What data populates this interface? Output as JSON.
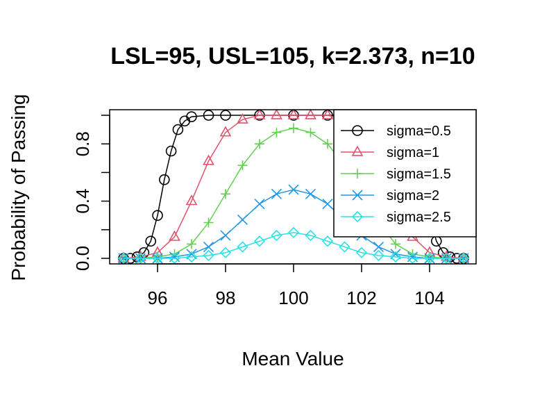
{
  "chart_data": {
    "type": "line",
    "title": "LSL=95, USL=105, k=2.373, n=10",
    "xlabel": "Mean Value",
    "ylabel": "Probability of Passing",
    "xlim": [
      95,
      105
    ],
    "ylim": [
      0,
      1
    ],
    "x_ticks": [
      "96",
      "98",
      "100",
      "102",
      "104"
    ],
    "y_ticks": [
      "0.0",
      "0.4",
      "0.8"
    ],
    "grid": false,
    "legend_position": "top-right",
    "series": [
      {
        "name": "sigma=0.5",
        "color": "#000000",
        "marker": "circle",
        "x": [
          95.0,
          95.2,
          95.4,
          95.6,
          95.8,
          96.0,
          96.2,
          96.4,
          96.6,
          96.8,
          97.0,
          97.5,
          98.0,
          99.0,
          100.0,
          101.0,
          102.0,
          102.5,
          103.0,
          103.2,
          103.4,
          103.6,
          103.8,
          104.0,
          104.2,
          104.4,
          104.6,
          104.8,
          105.0
        ],
        "y": [
          0.0,
          0.0,
          0.01,
          0.04,
          0.12,
          0.3,
          0.55,
          0.75,
          0.9,
          0.96,
          0.99,
          1.0,
          1.0,
          1.0,
          1.0,
          1.0,
          1.0,
          1.0,
          0.99,
          0.96,
          0.9,
          0.75,
          0.55,
          0.3,
          0.12,
          0.04,
          0.01,
          0.0,
          0.0
        ]
      },
      {
        "name": "sigma=1",
        "color": "#DF536B",
        "marker": "triangle",
        "x": [
          95.0,
          95.5,
          96.0,
          96.5,
          97.0,
          97.5,
          98.0,
          98.5,
          99.0,
          99.5,
          100.0,
          100.5,
          101.0,
          101.5,
          102.0,
          102.5,
          103.0,
          103.5,
          104.0,
          104.5,
          105.0
        ],
        "y": [
          0.0,
          0.01,
          0.04,
          0.15,
          0.4,
          0.68,
          0.88,
          0.97,
          1.0,
          1.0,
          1.0,
          1.0,
          1.0,
          0.97,
          0.88,
          0.68,
          0.4,
          0.15,
          0.04,
          0.01,
          0.0
        ]
      },
      {
        "name": "sigma=1.5",
        "color": "#61D04F",
        "marker": "plus",
        "x": [
          95.0,
          95.5,
          96.0,
          96.5,
          97.0,
          97.5,
          98.0,
          98.5,
          99.0,
          99.5,
          100.0,
          100.5,
          101.0,
          101.5,
          102.0,
          102.5,
          103.0,
          103.5,
          104.0,
          104.5,
          105.0
        ],
        "y": [
          0.0,
          0.0,
          0.01,
          0.03,
          0.1,
          0.25,
          0.45,
          0.65,
          0.8,
          0.88,
          0.91,
          0.88,
          0.8,
          0.65,
          0.45,
          0.25,
          0.1,
          0.03,
          0.01,
          0.0,
          0.0
        ]
      },
      {
        "name": "sigma=2",
        "color": "#2297E6",
        "marker": "cross",
        "x": [
          95.0,
          95.5,
          96.0,
          96.5,
          97.0,
          97.5,
          98.0,
          98.5,
          99.0,
          99.5,
          100.0,
          100.5,
          101.0,
          101.5,
          102.0,
          102.5,
          103.0,
          103.5,
          104.0,
          104.5,
          105.0
        ],
        "y": [
          0.0,
          0.0,
          0.0,
          0.01,
          0.03,
          0.08,
          0.16,
          0.27,
          0.38,
          0.45,
          0.48,
          0.45,
          0.38,
          0.27,
          0.16,
          0.08,
          0.03,
          0.01,
          0.0,
          0.0,
          0.0
        ]
      },
      {
        "name": "sigma=2.5",
        "color": "#28E2E5",
        "marker": "diamond",
        "x": [
          95.0,
          95.5,
          96.0,
          96.5,
          97.0,
          97.5,
          98.0,
          98.5,
          99.0,
          99.5,
          100.0,
          100.5,
          101.0,
          101.5,
          102.0,
          102.5,
          103.0,
          103.5,
          104.0,
          104.5,
          105.0
        ],
        "y": [
          0.0,
          0.0,
          0.0,
          0.0,
          0.01,
          0.02,
          0.04,
          0.08,
          0.12,
          0.16,
          0.18,
          0.16,
          0.12,
          0.08,
          0.04,
          0.02,
          0.01,
          0.0,
          0.0,
          0.0,
          0.0
        ]
      }
    ]
  }
}
